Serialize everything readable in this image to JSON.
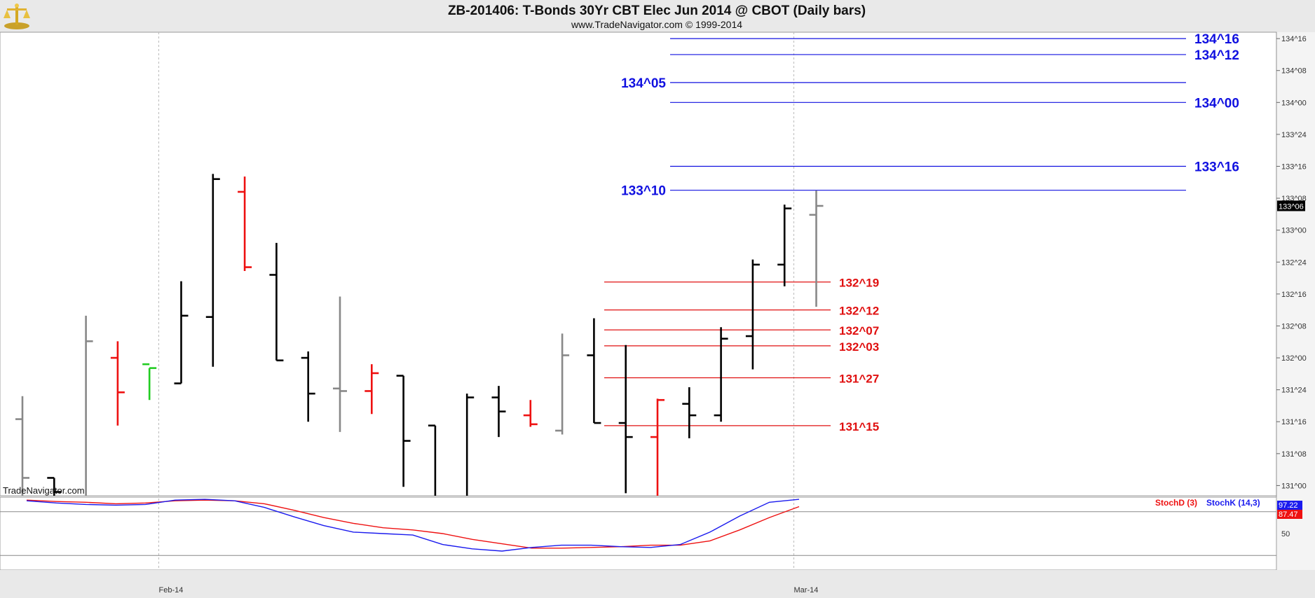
{
  "header": {
    "title": "ZB-201406:  T-Bonds 30Yr CBT Elec Jun 2014 @ CBOT  (Daily bars)",
    "subtitle": "www.TradeNavigator.com © 1999-2014",
    "watermark": "TradeNavigator.com",
    "logo_icon": "gold-scale-icon"
  },
  "colors": {
    "up": "#000000",
    "down": "#ee1111",
    "neutral": "#888888",
    "signal": "#22cc22",
    "resistance": "#1010e0",
    "support": "#e01010",
    "stochK": "#1a1aee",
    "stochD": "#ee1111",
    "grid": "#bbbbbb",
    "last_badge_bg": "#000000"
  },
  "chart_data": [
    {
      "type": "bar",
      "subtype": "ohlc",
      "y_unit": "points (32nds shown as ^)",
      "ylim": [
        130.92,
        134.55
      ],
      "y_ticks": [
        "131^00",
        "131^08",
        "131^16",
        "131^24",
        "132^00",
        "132^08",
        "132^16",
        "132^24",
        "133^00",
        "133^08",
        "133^16",
        "133^24",
        "134^00",
        "134^08",
        "134^16"
      ],
      "y_tick_values": [
        131.0,
        131.25,
        131.5,
        131.75,
        132.0,
        132.25,
        132.5,
        132.75,
        133.0,
        133.25,
        133.5,
        133.75,
        134.0,
        134.25,
        134.5
      ],
      "x_ticks": [
        {
          "label": "Feb-14",
          "bar": 5
        },
        {
          "label": "Mar-14",
          "bar": 25
        }
      ],
      "last_price": {
        "label": "133^06",
        "value": 133.1875
      },
      "bars": [
        {
          "o": 131.52,
          "h": 131.7,
          "l": 130.85,
          "c": 131.06,
          "color": "neutral"
        },
        {
          "o": 131.06,
          "h": 131.06,
          "l": 130.85,
          "c": 130.95,
          "color": "up"
        },
        {
          "o": 130.9,
          "h": 132.33,
          "l": 130.9,
          "c": 132.13,
          "color": "neutral"
        },
        {
          "o": 132.0,
          "h": 132.13,
          "l": 131.47,
          "c": 131.73,
          "color": "down"
        },
        {
          "o": 131.95,
          "h": 131.92,
          "l": 131.67,
          "c": 131.92,
          "color": "signal"
        },
        {
          "o": 131.8,
          "h": 132.6,
          "l": 131.8,
          "c": 132.33,
          "color": "up"
        },
        {
          "o": 132.32,
          "h": 133.44,
          "l": 131.93,
          "c": 133.4,
          "color": "up"
        },
        {
          "o": 133.3,
          "h": 133.42,
          "l": 132.68,
          "c": 132.71,
          "color": "down"
        },
        {
          "o": 132.65,
          "h": 132.9,
          "l": 131.98,
          "c": 131.98,
          "color": "up"
        },
        {
          "o": 132.0,
          "h": 132.05,
          "l": 131.5,
          "c": 131.72,
          "color": "up"
        },
        {
          "o": 131.76,
          "h": 132.48,
          "l": 131.42,
          "c": 131.74,
          "color": "neutral"
        },
        {
          "o": 131.74,
          "h": 131.95,
          "l": 131.56,
          "c": 131.88,
          "color": "down"
        },
        {
          "o": 131.86,
          "h": 131.86,
          "l": 130.99,
          "c": 131.35,
          "color": "up"
        },
        {
          "o": 131.47,
          "h": 131.47,
          "l": 130.86,
          "c": 130.86,
          "color": "up"
        },
        {
          "o": 130.9,
          "h": 131.72,
          "l": 130.9,
          "c": 131.69,
          "color": "up"
        },
        {
          "o": 131.69,
          "h": 131.78,
          "l": 131.38,
          "c": 131.58,
          "color": "up"
        },
        {
          "o": 131.55,
          "h": 131.67,
          "l": 131.46,
          "c": 131.48,
          "color": "down"
        },
        {
          "o": 131.43,
          "h": 132.19,
          "l": 131.4,
          "c": 132.02,
          "color": "neutral"
        },
        {
          "o": 132.02,
          "h": 132.31,
          "l": 131.49,
          "c": 131.49,
          "color": "up"
        },
        {
          "o": 131.49,
          "h": 132.1,
          "l": 130.94,
          "c": 131.38,
          "color": "up"
        },
        {
          "o": 131.38,
          "h": 131.68,
          "l": 130.92,
          "c": 131.67,
          "color": "down"
        },
        {
          "o": 131.64,
          "h": 131.77,
          "l": 131.37,
          "c": 131.55,
          "color": "up"
        },
        {
          "o": 131.55,
          "h": 132.24,
          "l": 131.5,
          "c": 132.15,
          "color": "up"
        },
        {
          "o": 132.17,
          "h": 132.77,
          "l": 131.91,
          "c": 132.73,
          "color": "up"
        },
        {
          "o": 132.73,
          "h": 133.2,
          "l": 132.56,
          "c": 133.17,
          "color": "up"
        },
        {
          "o": 133.12,
          "h": 133.31,
          "l": 132.4,
          "c": 133.19,
          "color": "neutral"
        }
      ],
      "levels": [
        {
          "label": "134^16",
          "value": 134.5,
          "side": "right",
          "color": "resistance"
        },
        {
          "label": "134^12",
          "value": 134.375,
          "side": "right",
          "color": "resistance"
        },
        {
          "label": "134^05",
          "value": 134.156,
          "side": "left",
          "color": "resistance"
        },
        {
          "label": "134^00",
          "value": 134.0,
          "side": "right",
          "color": "resistance"
        },
        {
          "label": "133^16",
          "value": 133.5,
          "side": "right",
          "color": "resistance"
        },
        {
          "label": "133^10",
          "value": 133.3125,
          "side": "left",
          "color": "resistance"
        },
        {
          "label": "132^19",
          "value": 132.594,
          "side": "right",
          "color": "support"
        },
        {
          "label": "132^12",
          "value": 132.375,
          "side": "right",
          "color": "support"
        },
        {
          "label": "132^07",
          "value": 132.219,
          "side": "right",
          "color": "support"
        },
        {
          "label": "132^03",
          "value": 132.094,
          "side": "right",
          "color": "support"
        },
        {
          "label": "131^27",
          "value": 131.844,
          "side": "right",
          "color": "support"
        },
        {
          "label": "131^15",
          "value": 131.469,
          "side": "right",
          "color": "support"
        }
      ]
    },
    {
      "type": "line",
      "title": "Stochastic",
      "ylim": [
        0,
        100
      ],
      "y_ticks": [
        "50"
      ],
      "y_tick_values": [
        50
      ],
      "reference_lines": [
        80,
        20
      ],
      "series": [
        {
          "name": "StochD (3)",
          "color": "stochD",
          "last_label": "87.47",
          "values": [
            96,
            94,
            93,
            91,
            92,
            95,
            96,
            95,
            91,
            82,
            72,
            64,
            58,
            55,
            50,
            42,
            36,
            30,
            30,
            31,
            32,
            34,
            34,
            40,
            55,
            72,
            87
          ]
        },
        {
          "name": "StochK (14,3)",
          "color": "stochK",
          "last_label": "97.22",
          "values": [
            95,
            92,
            90,
            89,
            90,
            96,
            97,
            95,
            86,
            73,
            61,
            52,
            50,
            48,
            35,
            29,
            26,
            31,
            34,
            34,
            32,
            31,
            35,
            52,
            74,
            93,
            97
          ]
        }
      ]
    }
  ]
}
